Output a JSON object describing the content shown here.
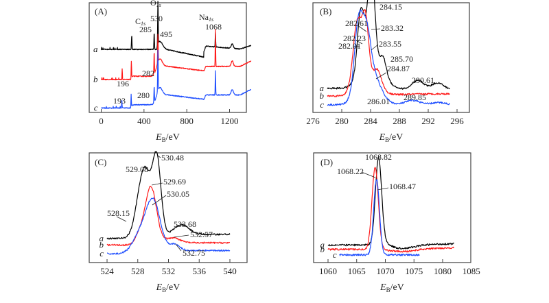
{
  "chart_data": [
    {
      "id": "A",
      "type": "line",
      "panel_label": "(A)",
      "xlabel_main": "E",
      "xlabel_sub": "B",
      "xlabel_unit": "/eV",
      "xlim": [
        -50,
        1450
      ],
      "xticks": [
        0,
        400,
        800,
        1200
      ],
      "xtick_labels": [
        "0",
        "400",
        "800",
        "1200"
      ],
      "yaxis": "arbitrary intensity (offset)",
      "series": [
        {
          "name": "a",
          "color": "#000000",
          "offset": 0.62,
          "baseline_x": [
            0,
            1400
          ],
          "peaks": [
            [
              285,
              0.1
            ],
            [
              495,
              0.14
            ],
            [
              530,
              0.42
            ],
            [
              1068,
              0.14
            ]
          ]
        },
        {
          "name": "b",
          "color": "#ff1a1a",
          "offset": 0.33,
          "baseline_x": [
            0,
            1400
          ],
          "peaks": [
            [
              196,
              0.1
            ],
            [
              282,
              0.16
            ],
            [
              495,
              0.2
            ],
            [
              530,
              0.27
            ],
            [
              1068,
              0.33
            ]
          ]
        },
        {
          "name": "c",
          "color": "#1f4fff",
          "offset": 0.06,
          "baseline_x": [
            0,
            1400
          ],
          "peaks": [
            [
              193,
              0.08
            ],
            [
              280,
              0.12
            ],
            [
              495,
              0.15
            ],
            [
              530,
              0.37
            ],
            [
              1068,
              0.22
            ]
          ]
        }
      ],
      "element_labels": [
        {
          "text": "C",
          "sub": "1s",
          "x": 285
        },
        {
          "text": "O",
          "sub": "1s",
          "x": 530
        },
        {
          "text": "Na",
          "sub": "1s",
          "x": 1068
        }
      ],
      "annotations": [
        "285",
        "495",
        "530",
        "1068",
        "282",
        "196",
        "193",
        "280"
      ]
    },
    {
      "id": "B",
      "type": "line",
      "panel_label": "(B)",
      "xlabel_main": "E",
      "xlabel_sub": "B",
      "xlabel_unit": "/eV",
      "xlim": [
        276,
        297.5
      ],
      "xticks": [
        276,
        280,
        284,
        288,
        292,
        296
      ],
      "xtick_labels": [
        "276",
        "280",
        "284",
        "288",
        "292",
        "296"
      ],
      "series": [
        {
          "name": "a",
          "color": "#000000",
          "x_range": [
            278,
            295
          ],
          "peaks_eV": [
            282.61,
            284.15,
            285.7,
            290.61
          ]
        },
        {
          "name": "b",
          "color": "#ff1a1a",
          "x_range": [
            278,
            295
          ],
          "peaks_eV": [
            282.01,
            283.32,
            284.87
          ]
        },
        {
          "name": "c",
          "color": "#1f4fff",
          "x_range": [
            278,
            295
          ],
          "peaks_eV": [
            282.23,
            283.55,
            286.01,
            289.85
          ]
        }
      ],
      "annotations": [
        "284.15",
        "282.61",
        "283.32",
        "282.23",
        "282.01",
        "283.55",
        "285.70",
        "284.87",
        "290.61",
        "286.01",
        "289.85"
      ]
    },
    {
      "id": "C",
      "type": "line",
      "panel_label": "(C)",
      "xlabel_main": "E",
      "xlabel_sub": "B",
      "xlabel_unit": "/eV",
      "xlim": [
        522,
        542.5
      ],
      "xticks": [
        524,
        528,
        532,
        536,
        540
      ],
      "xtick_labels": [
        "524",
        "528",
        "532",
        "536",
        "540"
      ],
      "series": [
        {
          "name": "a",
          "color": "#000000",
          "x_range": [
            524,
            540
          ],
          "peaks_eV": [
            529.08,
            530.48,
            533.68
          ]
        },
        {
          "name": "b",
          "color": "#ff1a1a",
          "x_range": [
            524,
            540
          ],
          "peaks_eV": [
            528.15,
            529.69,
            532.57
          ]
        },
        {
          "name": "c",
          "color": "#1f4fff",
          "x_range": [
            524,
            540
          ],
          "peaks_eV": [
            530.05,
            532.75
          ]
        }
      ],
      "annotations": [
        "530.48",
        "529.08",
        "529.69",
        "530.05",
        "528.15",
        "533.68",
        "532.57",
        "532.75"
      ]
    },
    {
      "id": "D",
      "type": "line",
      "panel_label": "(D)",
      "xlabel_main": "E",
      "xlabel_sub": "B",
      "xlabel_unit": "/eV",
      "xlim": [
        1057.5,
        1085
      ],
      "xticks": [
        1060,
        1065,
        1070,
        1075,
        1080,
        1085
      ],
      "xtick_labels": [
        "1060",
        "1065",
        "1070",
        "1075",
        "1080",
        "1085"
      ],
      "series": [
        {
          "name": "a",
          "color": "#000000",
          "x_range": [
            1060,
            1082
          ],
          "peaks_eV": [
            1068.82
          ]
        },
        {
          "name": "b",
          "color": "#ff1a1a",
          "x_range": [
            1060,
            1082
          ],
          "peaks_eV": [
            1068.22
          ]
        },
        {
          "name": "c",
          "color": "#1f4fff",
          "x_range": [
            1062,
            1076
          ],
          "peaks_eV": [
            1068.47
          ]
        }
      ],
      "annotations": [
        "1068.82",
        "1068.22",
        "1068.47"
      ]
    }
  ]
}
